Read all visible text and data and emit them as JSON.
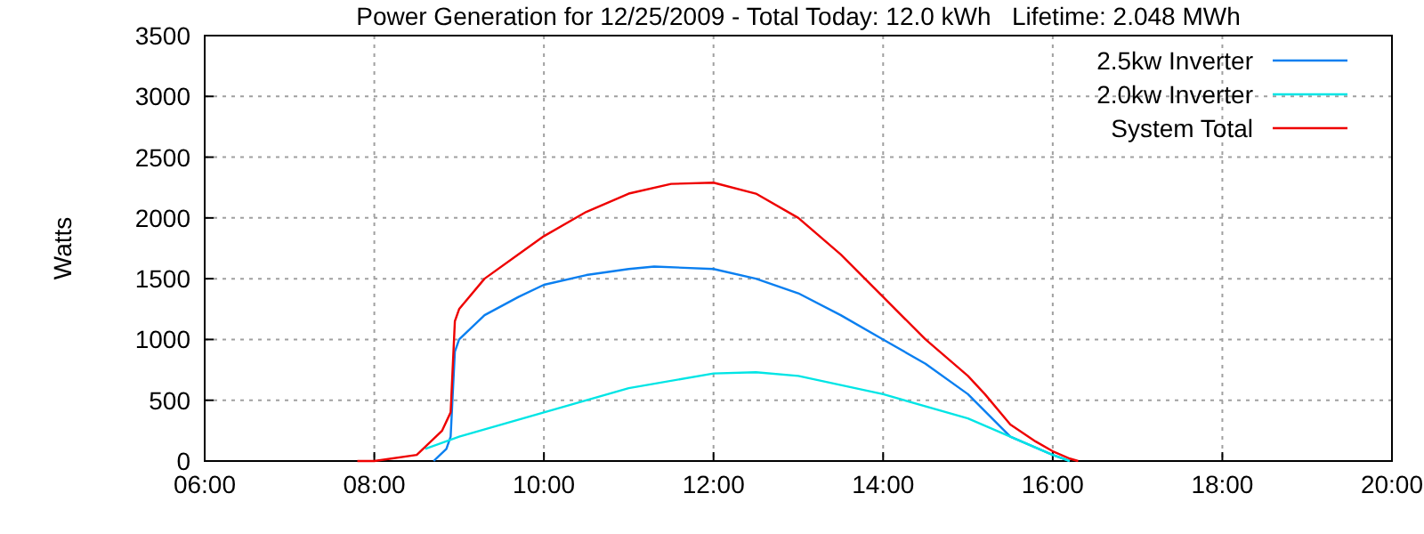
{
  "chart_data": {
    "type": "line",
    "title": "Power Generation for 12/25/2009 - Total Today: 12.0 kWh   Lifetime: 2.048 MWh",
    "ylabel": "Watts",
    "xlim": [
      6,
      20
    ],
    "xticks": [
      {
        "value": 6,
        "label": "06:00"
      },
      {
        "value": 8,
        "label": "08:00"
      },
      {
        "value": 10,
        "label": "10:00"
      },
      {
        "value": 12,
        "label": "12:00"
      },
      {
        "value": 14,
        "label": "14:00"
      },
      {
        "value": 16,
        "label": "16:00"
      },
      {
        "value": 18,
        "label": "18:00"
      },
      {
        "value": 20,
        "label": "20:00"
      }
    ],
    "ylim": [
      0,
      3500
    ],
    "yticks": [
      0,
      500,
      1000,
      1500,
      2000,
      2500,
      3000,
      3500
    ],
    "grid": true,
    "legend": "top right",
    "marker": "none",
    "line_style": "solid",
    "series": [
      {
        "name": "2.5kw Inverter",
        "color": "#0a7ff0",
        "x": [
          8.7,
          8.85,
          8.9,
          8.95,
          9.0,
          9.3,
          9.7,
          10,
          10.5,
          11,
          11.3,
          12,
          12.5,
          13,
          13.5,
          14,
          14.5,
          15,
          15.5,
          16,
          16.2
        ],
        "values": [
          0,
          100,
          200,
          900,
          1000,
          1200,
          1350,
          1450,
          1530,
          1580,
          1600,
          1580,
          1500,
          1380,
          1200,
          1000,
          800,
          550,
          200,
          50,
          0
        ]
      },
      {
        "name": "2.0kw Inverter",
        "color": "#00e5e5",
        "x": [
          8.6,
          9,
          10,
          11,
          12,
          12.5,
          13,
          14,
          15,
          15.5,
          16,
          16.2
        ],
        "values": [
          100,
          200,
          400,
          600,
          720,
          730,
          700,
          550,
          350,
          200,
          50,
          0
        ]
      },
      {
        "name": "System Total",
        "color": "#ee0000",
        "x": [
          7.8,
          8,
          8.5,
          8.8,
          8.9,
          8.95,
          9,
          9.3,
          9.7,
          10,
          10.5,
          11,
          11.5,
          12,
          12.5,
          13,
          13.5,
          14,
          14.5,
          15,
          15.2,
          15.5,
          15.8,
          16,
          16.2,
          16.3
        ],
        "values": [
          0,
          0,
          50,
          250,
          400,
          1150,
          1250,
          1500,
          1700,
          1850,
          2050,
          2200,
          2280,
          2290,
          2200,
          2000,
          1700,
          1350,
          1000,
          700,
          550,
          300,
          160,
          80,
          20,
          0
        ]
      }
    ]
  }
}
